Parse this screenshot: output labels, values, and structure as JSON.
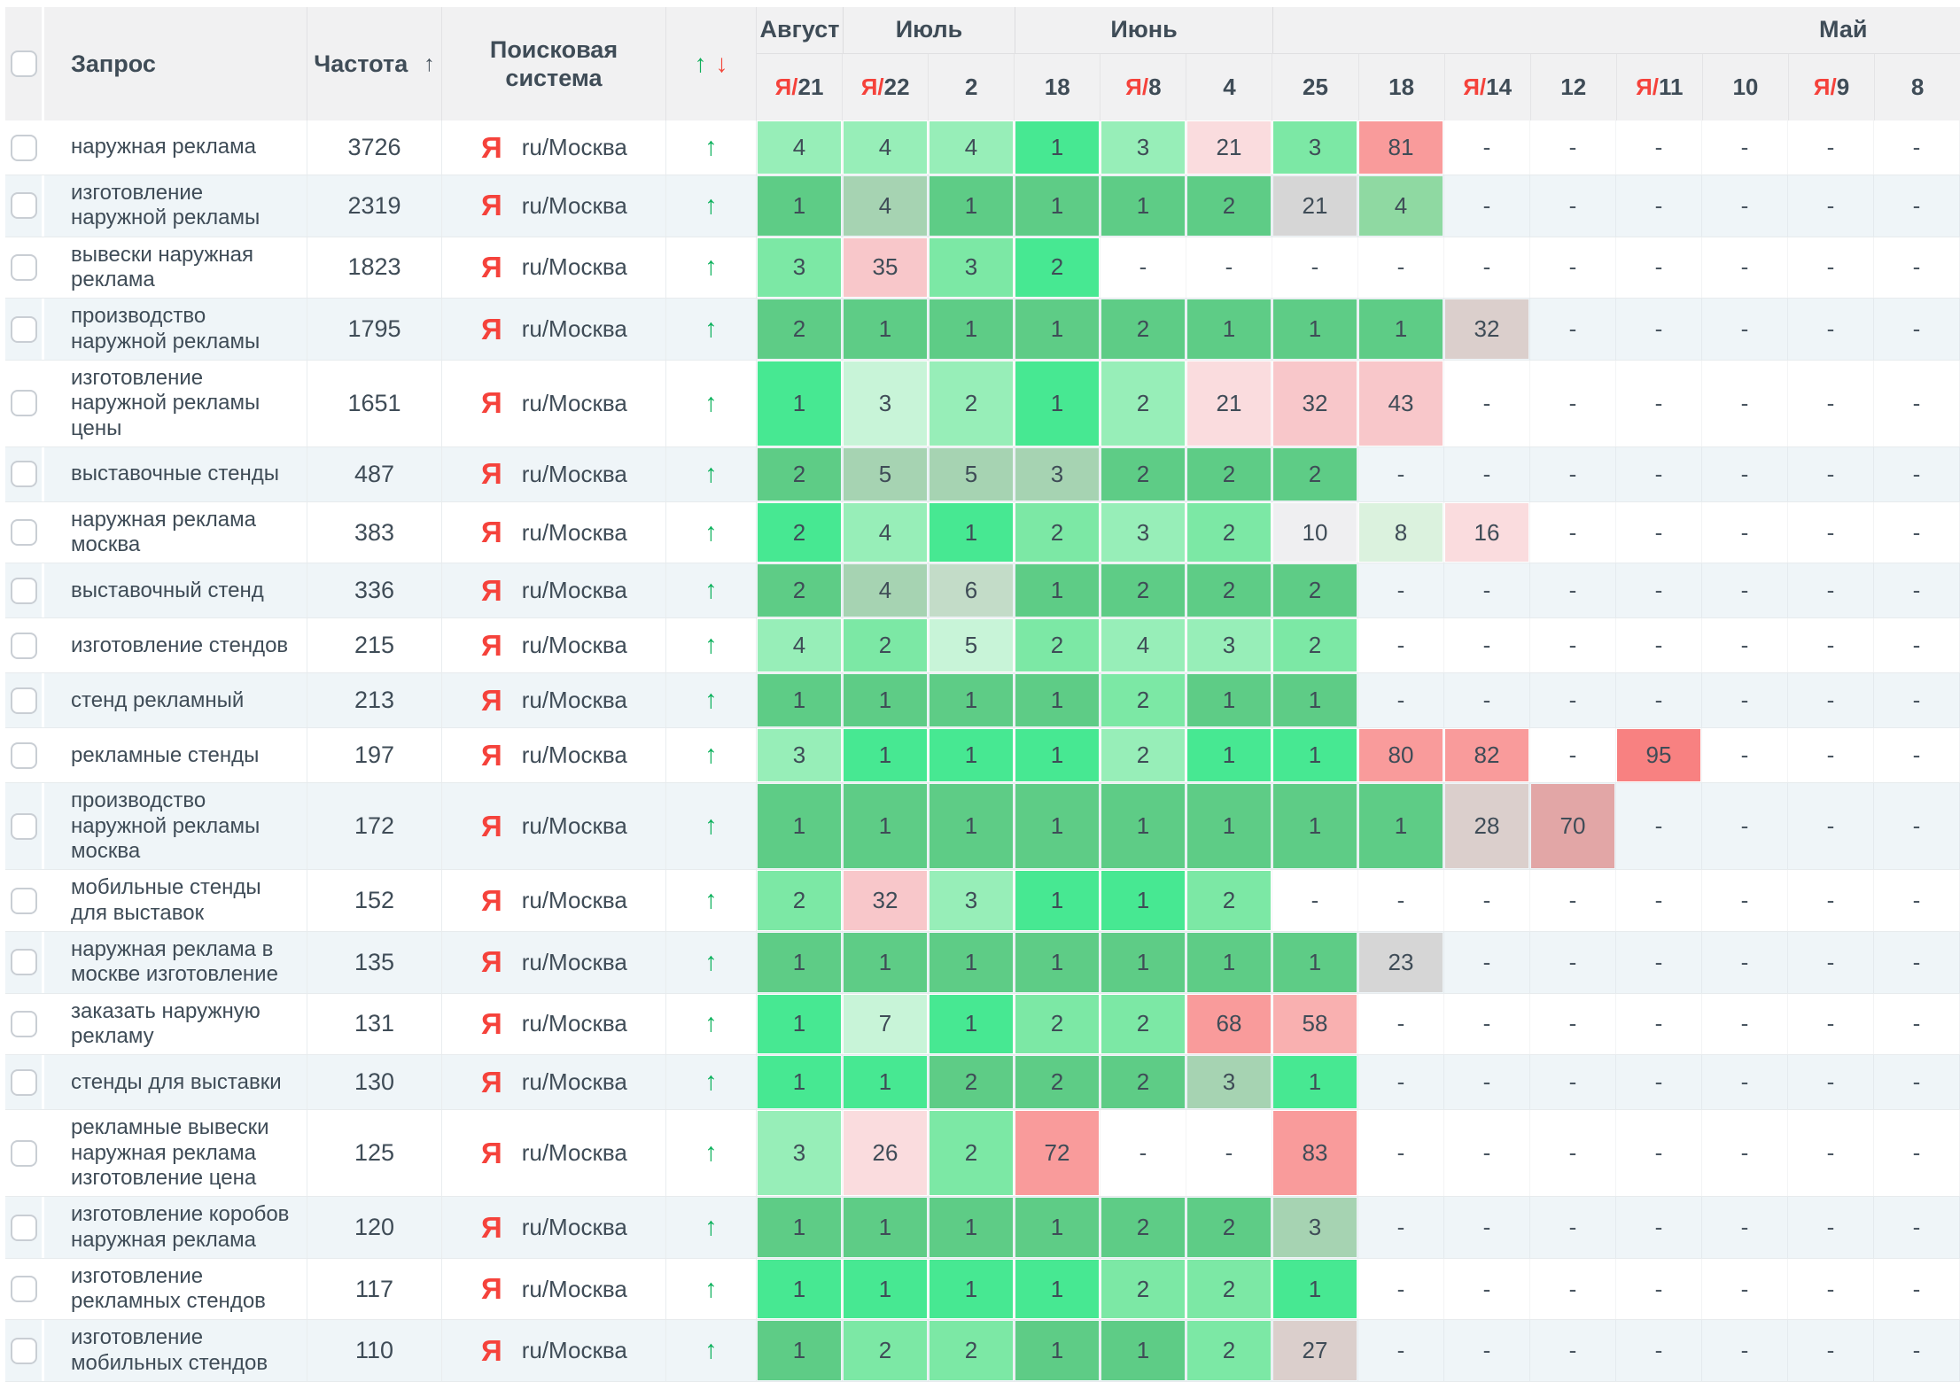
{
  "palette": {
    "g1": "#47e892",
    "g2": "#5ecc86",
    "g2l": "#8fd9a2",
    "g3": "#7ce8a5",
    "g4": "#97eeb8",
    "g5": "#c8f4d8",
    "g6": "#dbf2de",
    "gg": "#a6d3b2",
    "gg2": "#c3dcc8",
    "gy1": "#d6d6d6",
    "gy2": "#efeff1",
    "pg": "#dbcfcc",
    "p1": "#f8c7ca",
    "p2": "#fadcde",
    "r1": "#f99b9b",
    "r2": "#f88181",
    "r3": "#e2a6a6",
    "r4": "#f9b0b0",
    "accent_green": "#0fae5a",
    "accent_red": "#f3493d",
    "yandex_red": "#f5423b"
  },
  "header": {
    "query_label": "Запрос",
    "frequency_label": "Частота",
    "frequency_sort_icon": "↑",
    "engine_label": "Поисковая система",
    "dynamics_up": "↑",
    "dynamics_down": "↓",
    "months": [
      {
        "label": "Август",
        "span": 1
      },
      {
        "label": "Июль",
        "span": 2
      },
      {
        "label": "Июнь",
        "span": 3
      },
      {
        "label": "Май",
        "span": 8,
        "shifted": true
      }
    ],
    "dates": [
      {
        "ya": true,
        "day": "21"
      },
      {
        "ya": true,
        "day": "22"
      },
      {
        "ya": false,
        "day": "2"
      },
      {
        "ya": false,
        "day": "18"
      },
      {
        "ya": true,
        "day": "8"
      },
      {
        "ya": false,
        "day": "4"
      },
      {
        "ya": false,
        "day": "25"
      },
      {
        "ya": false,
        "day": "18"
      },
      {
        "ya": true,
        "day": "14"
      },
      {
        "ya": false,
        "day": "12"
      },
      {
        "ya": true,
        "day": "11"
      },
      {
        "ya": false,
        "day": "10"
      },
      {
        "ya": true,
        "day": "9"
      },
      {
        "ya": false,
        "day": "8"
      }
    ],
    "ya_prefix": "Я/"
  },
  "engine": {
    "icon_letter": "Я",
    "region": "ru/Москва"
  },
  "row_up_icon": "↑",
  "dash": "-",
  "rows": [
    {
      "query": "наружная реклама",
      "frequency": "3726",
      "cells": [
        [
          "4",
          "g4"
        ],
        [
          "4",
          "g4"
        ],
        [
          "4",
          "g4"
        ],
        [
          "1",
          "g1"
        ],
        [
          "3",
          "g4"
        ],
        [
          "21",
          "p2"
        ],
        [
          "3",
          "g3"
        ],
        [
          "81",
          "r1"
        ],
        [
          "-",
          ""
        ],
        [
          "-",
          ""
        ],
        [
          "-",
          ""
        ],
        [
          "-",
          ""
        ],
        [
          "-",
          ""
        ],
        [
          "-",
          ""
        ]
      ]
    },
    {
      "query": "изготовление наружной рекламы",
      "frequency": "2319",
      "cells": [
        [
          "1",
          "g2"
        ],
        [
          "4",
          "gg"
        ],
        [
          "1",
          "g2"
        ],
        [
          "1",
          "g2"
        ],
        [
          "1",
          "g2"
        ],
        [
          "2",
          "g2"
        ],
        [
          "21",
          "gy1"
        ],
        [
          "4",
          "g2l"
        ],
        [
          "-",
          ""
        ],
        [
          "-",
          ""
        ],
        [
          "-",
          ""
        ],
        [
          "-",
          ""
        ],
        [
          "-",
          ""
        ],
        [
          "-",
          ""
        ]
      ]
    },
    {
      "query": "вывески наружная реклама",
      "frequency": "1823",
      "cells": [
        [
          "3",
          "g3"
        ],
        [
          "35",
          "p1"
        ],
        [
          "3",
          "g3"
        ],
        [
          "2",
          "g1"
        ],
        [
          "-",
          ""
        ],
        [
          "-",
          ""
        ],
        [
          "-",
          ""
        ],
        [
          "-",
          ""
        ],
        [
          "-",
          ""
        ],
        [
          "-",
          ""
        ],
        [
          "-",
          ""
        ],
        [
          "-",
          ""
        ],
        [
          "-",
          ""
        ],
        [
          "-",
          ""
        ]
      ]
    },
    {
      "query": "производство наружной рекламы",
      "frequency": "1795",
      "cells": [
        [
          "2",
          "g2"
        ],
        [
          "1",
          "g2"
        ],
        [
          "1",
          "g2"
        ],
        [
          "1",
          "g2"
        ],
        [
          "2",
          "g2"
        ],
        [
          "1",
          "g2"
        ],
        [
          "1",
          "g2"
        ],
        [
          "1",
          "g2"
        ],
        [
          "32",
          "pg"
        ],
        [
          "-",
          ""
        ],
        [
          "-",
          ""
        ],
        [
          "-",
          ""
        ],
        [
          "-",
          ""
        ],
        [
          "-",
          ""
        ]
      ]
    },
    {
      "query": "изготовление наружной рекламы цены",
      "frequency": "1651",
      "cells": [
        [
          "1",
          "g1"
        ],
        [
          "3",
          "g5"
        ],
        [
          "2",
          "g4"
        ],
        [
          "1",
          "g1"
        ],
        [
          "2",
          "g4"
        ],
        [
          "21",
          "p2"
        ],
        [
          "32",
          "p1"
        ],
        [
          "43",
          "p1"
        ],
        [
          "-",
          ""
        ],
        [
          "-",
          ""
        ],
        [
          "-",
          ""
        ],
        [
          "-",
          ""
        ],
        [
          "-",
          ""
        ],
        [
          "-",
          ""
        ]
      ]
    },
    {
      "query": "выставочные стенды",
      "frequency": "487",
      "cells": [
        [
          "2",
          "g2"
        ],
        [
          "5",
          "gg"
        ],
        [
          "5",
          "gg"
        ],
        [
          "3",
          "gg"
        ],
        [
          "2",
          "g2"
        ],
        [
          "2",
          "g2"
        ],
        [
          "2",
          "g2"
        ],
        [
          "-",
          ""
        ],
        [
          "-",
          ""
        ],
        [
          "-",
          ""
        ],
        [
          "-",
          ""
        ],
        [
          "-",
          ""
        ],
        [
          "-",
          ""
        ],
        [
          "-",
          ""
        ]
      ]
    },
    {
      "query": "наружная реклама москва",
      "frequency": "383",
      "cells": [
        [
          "2",
          "g1"
        ],
        [
          "4",
          "g4"
        ],
        [
          "1",
          "g1"
        ],
        [
          "2",
          "g3"
        ],
        [
          "3",
          "g4"
        ],
        [
          "2",
          "g3"
        ],
        [
          "10",
          "gy2"
        ],
        [
          "8",
          "g6"
        ],
        [
          "16",
          "p2"
        ],
        [
          "-",
          ""
        ],
        [
          "-",
          ""
        ],
        [
          "-",
          ""
        ],
        [
          "-",
          ""
        ],
        [
          "-",
          ""
        ]
      ]
    },
    {
      "query": "выставочный стенд",
      "frequency": "336",
      "cells": [
        [
          "2",
          "g2"
        ],
        [
          "4",
          "gg"
        ],
        [
          "6",
          "gg2"
        ],
        [
          "1",
          "g2"
        ],
        [
          "2",
          "g2"
        ],
        [
          "2",
          "g2"
        ],
        [
          "2",
          "g2"
        ],
        [
          "-",
          ""
        ],
        [
          "-",
          ""
        ],
        [
          "-",
          ""
        ],
        [
          "-",
          ""
        ],
        [
          "-",
          ""
        ],
        [
          "-",
          ""
        ],
        [
          "-",
          ""
        ]
      ]
    },
    {
      "query": "изготовление стендов",
      "frequency": "215",
      "cells": [
        [
          "4",
          "g4"
        ],
        [
          "2",
          "g3"
        ],
        [
          "5",
          "g5"
        ],
        [
          "2",
          "g3"
        ],
        [
          "4",
          "g4"
        ],
        [
          "3",
          "g4"
        ],
        [
          "2",
          "g3"
        ],
        [
          "-",
          ""
        ],
        [
          "-",
          ""
        ],
        [
          "-",
          ""
        ],
        [
          "-",
          ""
        ],
        [
          "-",
          ""
        ],
        [
          "-",
          ""
        ],
        [
          "-",
          ""
        ]
      ]
    },
    {
      "query": "стенд рекламный",
      "frequency": "213",
      "cells": [
        [
          "1",
          "g2"
        ],
        [
          "1",
          "g2"
        ],
        [
          "1",
          "g2"
        ],
        [
          "1",
          "g2"
        ],
        [
          "2",
          "g3"
        ],
        [
          "1",
          "g2"
        ],
        [
          "1",
          "g2"
        ],
        [
          "-",
          ""
        ],
        [
          "-",
          ""
        ],
        [
          "-",
          ""
        ],
        [
          "-",
          ""
        ],
        [
          "-",
          ""
        ],
        [
          "-",
          ""
        ],
        [
          "-",
          ""
        ]
      ]
    },
    {
      "query": "рекламные стенды",
      "frequency": "197",
      "cells": [
        [
          "3",
          "g4"
        ],
        [
          "1",
          "g1"
        ],
        [
          "1",
          "g1"
        ],
        [
          "1",
          "g1"
        ],
        [
          "2",
          "g4"
        ],
        [
          "1",
          "g1"
        ],
        [
          "1",
          "g1"
        ],
        [
          "80",
          "r1"
        ],
        [
          "82",
          "r1"
        ],
        [
          "-",
          ""
        ],
        [
          "95",
          "r2"
        ],
        [
          "-",
          ""
        ],
        [
          "-",
          ""
        ],
        [
          "-",
          ""
        ]
      ]
    },
    {
      "query": "производство наружной рекламы москва",
      "frequency": "172",
      "cells": [
        [
          "1",
          "g2"
        ],
        [
          "1",
          "g2"
        ],
        [
          "1",
          "g2"
        ],
        [
          "1",
          "g2"
        ],
        [
          "1",
          "g2"
        ],
        [
          "1",
          "g2"
        ],
        [
          "1",
          "g2"
        ],
        [
          "1",
          "g2"
        ],
        [
          "28",
          "pg"
        ],
        [
          "70",
          "r3"
        ],
        [
          "-",
          ""
        ],
        [
          "-",
          ""
        ],
        [
          "-",
          ""
        ],
        [
          "-",
          ""
        ]
      ]
    },
    {
      "query": "мобильные стенды для выставок",
      "frequency": "152",
      "cells": [
        [
          "2",
          "g3"
        ],
        [
          "32",
          "p1"
        ],
        [
          "3",
          "g4"
        ],
        [
          "1",
          "g1"
        ],
        [
          "1",
          "g1"
        ],
        [
          "2",
          "g3"
        ],
        [
          "-",
          ""
        ],
        [
          "-",
          ""
        ],
        [
          "-",
          ""
        ],
        [
          "-",
          ""
        ],
        [
          "-",
          ""
        ],
        [
          "-",
          ""
        ],
        [
          "-",
          ""
        ],
        [
          "-",
          ""
        ]
      ]
    },
    {
      "query": "наружная реклама в москве изготовление",
      "frequency": "135",
      "cells": [
        [
          "1",
          "g2"
        ],
        [
          "1",
          "g2"
        ],
        [
          "1",
          "g2"
        ],
        [
          "1",
          "g2"
        ],
        [
          "1",
          "g2"
        ],
        [
          "1",
          "g2"
        ],
        [
          "1",
          "g2"
        ],
        [
          "23",
          "gy1"
        ],
        [
          "-",
          ""
        ],
        [
          "-",
          ""
        ],
        [
          "-",
          ""
        ],
        [
          "-",
          ""
        ],
        [
          "-",
          ""
        ],
        [
          "-",
          ""
        ]
      ]
    },
    {
      "query": "заказать наружную рекламу",
      "frequency": "131",
      "cells": [
        [
          "1",
          "g1"
        ],
        [
          "7",
          "g5"
        ],
        [
          "1",
          "g1"
        ],
        [
          "2",
          "g3"
        ],
        [
          "2",
          "g3"
        ],
        [
          "68",
          "r1"
        ],
        [
          "58",
          "r4"
        ],
        [
          "-",
          ""
        ],
        [
          "-",
          ""
        ],
        [
          "-",
          ""
        ],
        [
          "-",
          ""
        ],
        [
          "-",
          ""
        ],
        [
          "-",
          ""
        ],
        [
          "-",
          ""
        ]
      ]
    },
    {
      "query": "стенды для выставки",
      "frequency": "130",
      "cells": [
        [
          "1",
          "g1"
        ],
        [
          "1",
          "g1"
        ],
        [
          "2",
          "g2"
        ],
        [
          "2",
          "g2"
        ],
        [
          "2",
          "g2"
        ],
        [
          "3",
          "gg"
        ],
        [
          "1",
          "g1"
        ],
        [
          "-",
          ""
        ],
        [
          "-",
          ""
        ],
        [
          "-",
          ""
        ],
        [
          "-",
          ""
        ],
        [
          "-",
          ""
        ],
        [
          "-",
          ""
        ],
        [
          "-",
          ""
        ]
      ]
    },
    {
      "query": "рекламные вывески наружная реклама изготовление цена",
      "frequency": "125",
      "cells": [
        [
          "3",
          "g4"
        ],
        [
          "26",
          "p2"
        ],
        [
          "2",
          "g3"
        ],
        [
          "72",
          "r1"
        ],
        [
          "-",
          ""
        ],
        [
          "-",
          ""
        ],
        [
          "83",
          "r1"
        ],
        [
          "-",
          ""
        ],
        [
          "-",
          ""
        ],
        [
          "-",
          ""
        ],
        [
          "-",
          ""
        ],
        [
          "-",
          ""
        ],
        [
          "-",
          ""
        ],
        [
          "-",
          ""
        ]
      ]
    },
    {
      "query": "изготовление коробов наружная реклама",
      "frequency": "120",
      "cells": [
        [
          "1",
          "g2"
        ],
        [
          "1",
          "g2"
        ],
        [
          "1",
          "g2"
        ],
        [
          "1",
          "g2"
        ],
        [
          "2",
          "g2"
        ],
        [
          "2",
          "g2"
        ],
        [
          "3",
          "gg"
        ],
        [
          "-",
          ""
        ],
        [
          "-",
          ""
        ],
        [
          "-",
          ""
        ],
        [
          "-",
          ""
        ],
        [
          "-",
          ""
        ],
        [
          "-",
          ""
        ],
        [
          "-",
          ""
        ]
      ]
    },
    {
      "query": "изготовление рекламных стендов",
      "frequency": "117",
      "cells": [
        [
          "1",
          "g1"
        ],
        [
          "1",
          "g1"
        ],
        [
          "1",
          "g1"
        ],
        [
          "1",
          "g1"
        ],
        [
          "2",
          "g3"
        ],
        [
          "2",
          "g3"
        ],
        [
          "1",
          "g1"
        ],
        [
          "-",
          ""
        ],
        [
          "-",
          ""
        ],
        [
          "-",
          ""
        ],
        [
          "-",
          ""
        ],
        [
          "-",
          ""
        ],
        [
          "-",
          ""
        ],
        [
          "-",
          ""
        ]
      ]
    },
    {
      "query": "изготовление мобильных стендов",
      "frequency": "110",
      "cells": [
        [
          "1",
          "g2"
        ],
        [
          "2",
          "g3"
        ],
        [
          "2",
          "g3"
        ],
        [
          "1",
          "g2"
        ],
        [
          "1",
          "g2"
        ],
        [
          "2",
          "g3"
        ],
        [
          "27",
          "pg"
        ],
        [
          "-",
          ""
        ],
        [
          "-",
          ""
        ],
        [
          "-",
          ""
        ],
        [
          "-",
          ""
        ],
        [
          "-",
          ""
        ],
        [
          "-",
          ""
        ],
        [
          "-",
          ""
        ]
      ]
    }
  ]
}
